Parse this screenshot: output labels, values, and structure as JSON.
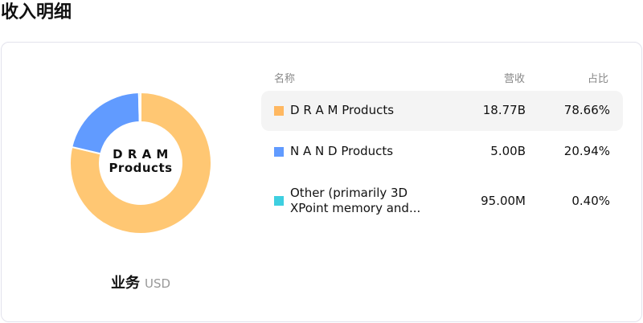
{
  "title": "收入明细",
  "chart_data": {
    "type": "pie",
    "donut": true,
    "center_label": "D R A M Products",
    "categories": [
      "D R A M Products",
      "N A N D Products",
      "Other (primarily 3D XPoint memory and..."
    ],
    "values": [
      78.66,
      20.94,
      0.4
    ],
    "colors": [
      "#ffc773",
      "#619bff",
      "#3ecfe0"
    ]
  },
  "caption": {
    "label": "业务",
    "unit": "USD"
  },
  "table": {
    "headers": {
      "name": "名称",
      "revenue": "营收",
      "share": "占比"
    },
    "rows": [
      {
        "name": "D R A M Products",
        "revenue": "18.77B",
        "share": "78.66%",
        "color": "#ffb861"
      },
      {
        "name": "N A N D Products",
        "revenue": "5.00B",
        "share": "20.94%",
        "color": "#619bff"
      },
      {
        "name": "Other (primarily 3D XPoint memory and...",
        "revenue": "95.00M",
        "share": "0.40%",
        "color": "#3ecfe0"
      }
    ]
  }
}
